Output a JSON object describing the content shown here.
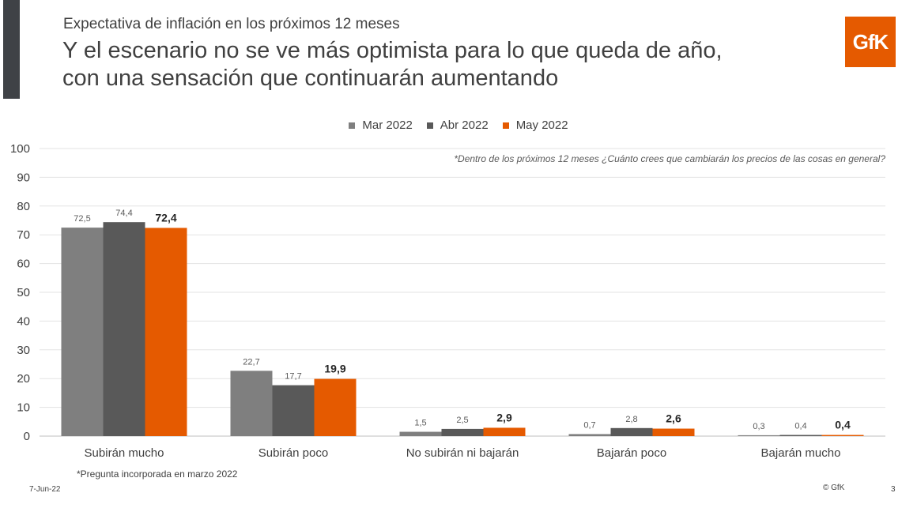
{
  "header": {
    "subtitle": "Expectativa de inflación en los próximos 12 meses",
    "title_line1": "Y el escenario no se ve más optimista para lo que queda de año,",
    "title_line2": "con una sensación que continuarán aumentando"
  },
  "logo": {
    "text": "GfK",
    "color": "#e55a00"
  },
  "question": "*Dentro de los próximos 12 meses ¿Cuánto crees que cambiarán los precios de las cosas en general?",
  "footer": {
    "note": "*Pregunta incorporada en marzo 2022",
    "date": "7-Jun-22",
    "copyright": "© GfK",
    "page": "3"
  },
  "chart_data": {
    "type": "bar",
    "title": "Expectativa de inflación en los próximos 12 meses",
    "categories": [
      "Subirán mucho",
      "Subirán poco",
      "No subirán ni bajarán",
      "Bajarán poco",
      "Bajarán mucho"
    ],
    "series": [
      {
        "name": "Mar 2022",
        "color": "#7f7f7f",
        "values": [
          72.5,
          22.7,
          1.5,
          0.7,
          0.3
        ],
        "labels": [
          "72,5",
          "22,7",
          "1,5",
          "0,7",
          "0,3"
        ]
      },
      {
        "name": "Abr 2022",
        "color": "#595959",
        "values": [
          74.4,
          17.7,
          2.5,
          2.8,
          0.4
        ],
        "labels": [
          "74,4",
          "17,7",
          "2,5",
          "2,8",
          "0,4"
        ]
      },
      {
        "name": "May 2022",
        "color": "#e55a00",
        "values": [
          72.4,
          19.9,
          2.9,
          2.6,
          0.4
        ],
        "labels": [
          "72,4",
          "19,9",
          "2,9",
          "2,6",
          "0,4"
        ]
      }
    ],
    "ylim": [
      0,
      100
    ],
    "yticks": [
      "0",
      "10",
      "20",
      "30",
      "40",
      "50",
      "60",
      "70",
      "80",
      "90",
      "100"
    ],
    "xlabel": "",
    "ylabel": "",
    "grid": true,
    "legend_position": "top-center"
  }
}
